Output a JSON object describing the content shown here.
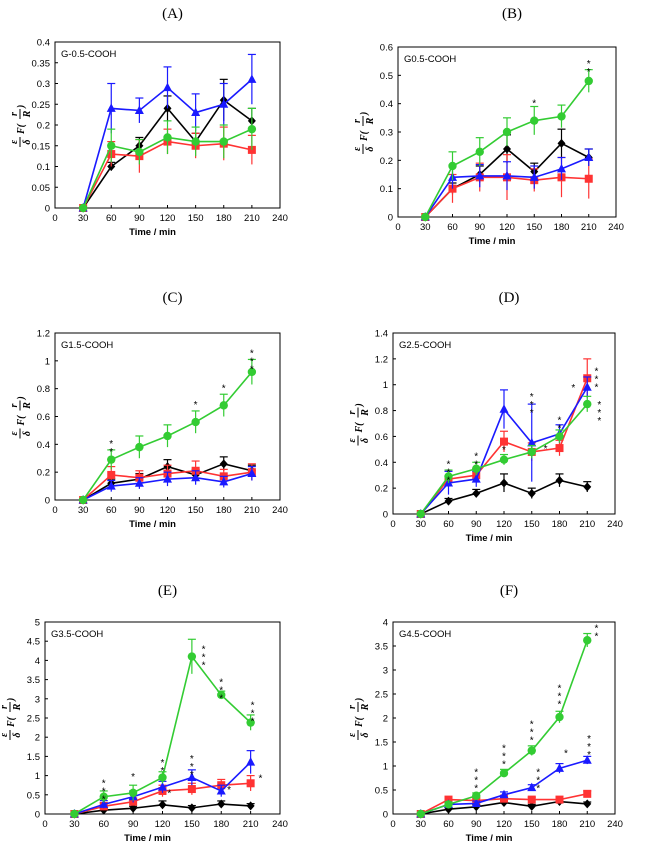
{
  "figure": {
    "ylabel_parts": {
      "eps": "ε",
      "delta": "δ",
      "F": "F(",
      "r": "r",
      "R": "R",
      "close": ")"
    }
  },
  "chart_data": [
    {
      "type": "line",
      "panel": "(A)",
      "title": "G-0.5-COOH",
      "xlabel": "Time / min",
      "xlim": [
        0,
        240
      ],
      "xticks": [
        0,
        30,
        60,
        90,
        120,
        150,
        180,
        210,
        240
      ],
      "ylim": [
        0,
        0.4
      ],
      "yticks": [
        "0",
        "0.05",
        "0.1",
        "0.15",
        "0.2",
        "0.25",
        "0.3",
        "0.35",
        "0.4"
      ],
      "x": [
        30,
        60,
        90,
        120,
        150,
        180,
        210
      ],
      "series": [
        {
          "name": "black",
          "color": "#000000",
          "marker": "diamond",
          "values": [
            0,
            0.1,
            0.15,
            0.24,
            0.16,
            0.26,
            0.21
          ],
          "errors": [
            0,
            0.01,
            0.02,
            0.03,
            0.02,
            0.05,
            0.03
          ]
        },
        {
          "name": "red",
          "color": "#ff3333",
          "marker": "square",
          "values": [
            0,
            0.13,
            0.125,
            0.16,
            0.15,
            0.155,
            0.14
          ],
          "errors": [
            0,
            0.03,
            0.04,
            0.03,
            0.03,
            0.04,
            0.035
          ]
        },
        {
          "name": "blue",
          "color": "#1a1aff",
          "marker": "triangle",
          "values": [
            0,
            0.24,
            0.235,
            0.29,
            0.23,
            0.25,
            0.31
          ],
          "errors": [
            0,
            0.06,
            0.03,
            0.05,
            0.045,
            0.05,
            0.06
          ]
        },
        {
          "name": "green",
          "color": "#33cc33",
          "marker": "circle",
          "values": [
            0,
            0.15,
            0.135,
            0.17,
            0.16,
            0.16,
            0.19
          ],
          "errors": [
            0,
            0.04,
            0.03,
            0.04,
            0.035,
            0.04,
            0.05
          ]
        }
      ],
      "annotations": []
    },
    {
      "type": "line",
      "panel": "(B)",
      "title": "G0.5-COOH",
      "xlabel": "Time / min",
      "xlim": [
        0,
        240
      ],
      "xticks": [
        0,
        30,
        60,
        90,
        120,
        150,
        180,
        210,
        240
      ],
      "ylim": [
        0,
        0.6
      ],
      "yticks": [
        "0",
        "0.1",
        "0.2",
        "0.3",
        "0.4",
        "0.5",
        "0.6"
      ],
      "x": [
        30,
        60,
        90,
        120,
        150,
        180,
        210
      ],
      "series": [
        {
          "name": "black",
          "color": "#000000",
          "marker": "diamond",
          "values": [
            0,
            0.1,
            0.15,
            0.24,
            0.16,
            0.26,
            0.21
          ],
          "errors": [
            0,
            0.02,
            0.03,
            0.05,
            0.03,
            0.05,
            0.03
          ]
        },
        {
          "name": "red",
          "color": "#ff3333",
          "marker": "square",
          "values": [
            0,
            0.1,
            0.14,
            0.14,
            0.13,
            0.14,
            0.135
          ],
          "errors": [
            0,
            0.05,
            0.05,
            0.08,
            0.04,
            0.07,
            0.07
          ]
        },
        {
          "name": "blue",
          "color": "#1a1aff",
          "marker": "triangle",
          "values": [
            0,
            0.14,
            0.145,
            0.145,
            0.14,
            0.17,
            0.21
          ],
          "errors": [
            0,
            0.04,
            0.04,
            0.05,
            0.04,
            0.04,
            0.03
          ]
        },
        {
          "name": "green",
          "color": "#33cc33",
          "marker": "circle",
          "values": [
            0,
            0.18,
            0.23,
            0.3,
            0.34,
            0.355,
            0.48
          ],
          "errors": [
            0,
            0.05,
            0.05,
            0.05,
            0.05,
            0.04,
            0.04
          ]
        }
      ],
      "annotations": [
        {
          "x": 150,
          "text": "*",
          "count": 1,
          "anchor": 0.39
        },
        {
          "x": 210,
          "text": "*",
          "count": 2,
          "anchor": 0.53
        }
      ]
    },
    {
      "type": "line",
      "panel": "(C)",
      "title": "G1.5-COOH",
      "xlabel": "Time / min",
      "xlim": [
        0,
        240
      ],
      "xticks": [
        0,
        30,
        60,
        90,
        120,
        150,
        180,
        210,
        240
      ],
      "ylim": [
        0,
        1.2
      ],
      "yticks": [
        "0",
        "0.2",
        "0.4",
        "0.6",
        "0.8",
        "1",
        "1.2"
      ],
      "x": [
        30,
        60,
        90,
        120,
        150,
        180,
        210
      ],
      "series": [
        {
          "name": "black",
          "color": "#000000",
          "marker": "diamond",
          "values": [
            0,
            0.12,
            0.15,
            0.24,
            0.18,
            0.26,
            0.21
          ],
          "errors": [
            0,
            0.03,
            0.04,
            0.05,
            0.04,
            0.05,
            0.04
          ]
        },
        {
          "name": "red",
          "color": "#ff3333",
          "marker": "square",
          "values": [
            0,
            0.18,
            0.16,
            0.19,
            0.21,
            0.17,
            0.2
          ],
          "errors": [
            0,
            0.06,
            0.05,
            0.06,
            0.07,
            0.05,
            0.06
          ]
        },
        {
          "name": "blue",
          "color": "#1a1aff",
          "marker": "triangle",
          "values": [
            0,
            0.1,
            0.12,
            0.15,
            0.16,
            0.13,
            0.19
          ],
          "errors": [
            0,
            0.04,
            0.04,
            0.05,
            0.05,
            0.04,
            0.05
          ]
        },
        {
          "name": "green",
          "color": "#33cc33",
          "marker": "circle",
          "values": [
            0,
            0.29,
            0.38,
            0.46,
            0.56,
            0.68,
            0.92
          ],
          "errors": [
            0,
            0.07,
            0.08,
            0.08,
            0.08,
            0.08,
            0.09
          ]
        }
      ],
      "annotations": [
        {
          "x": 60,
          "text": "*",
          "count": 2,
          "anchor": 0.38
        },
        {
          "x": 150,
          "text": "*",
          "count": 1,
          "anchor": 0.66
        },
        {
          "x": 180,
          "text": "*",
          "count": 1,
          "anchor": 0.78
        },
        {
          "x": 210,
          "text": "*",
          "count": 3,
          "anchor": 1.03
        }
      ]
    },
    {
      "type": "line",
      "panel": "(D)",
      "title": "G2.5-COOH",
      "xlabel": "Time / min",
      "xlim": [
        0,
        240
      ],
      "xticks": [
        0,
        30,
        60,
        90,
        120,
        150,
        180,
        210,
        240
      ],
      "ylim": [
        0,
        1.4
      ],
      "yticks": [
        "0",
        "0.2",
        "0.4",
        "0.6",
        "0.8",
        "1",
        "1.2",
        "1.4"
      ],
      "x": [
        30,
        60,
        90,
        120,
        150,
        180,
        210
      ],
      "series": [
        {
          "name": "black",
          "color": "#000000",
          "marker": "diamond",
          "values": [
            0,
            0.1,
            0.16,
            0.24,
            0.16,
            0.26,
            0.21
          ],
          "errors": [
            0,
            0.02,
            0.03,
            0.07,
            0.04,
            0.05,
            0.04
          ]
        },
        {
          "name": "red",
          "color": "#ff3333",
          "marker": "square",
          "values": [
            0,
            0.27,
            0.3,
            0.56,
            0.48,
            0.51,
            1.05
          ],
          "errors": [
            0,
            0.06,
            0.05,
            0.08,
            0.07,
            0.06,
            0.15
          ]
        },
        {
          "name": "blue",
          "color": "#1a1aff",
          "marker": "triangle",
          "values": [
            0,
            0.24,
            0.27,
            0.81,
            0.55,
            0.62,
            0.98
          ],
          "errors": [
            0,
            0.09,
            0.06,
            0.15,
            0.3,
            0.07,
            0.08
          ]
        },
        {
          "name": "green",
          "color": "#33cc33",
          "marker": "circle",
          "values": [
            0,
            0.29,
            0.35,
            0.42,
            0.48,
            0.6,
            0.85
          ],
          "errors": [
            0,
            0.05,
            0.05,
            0.04,
            0.05,
            0.05,
            0.06
          ]
        }
      ],
      "annotations": [
        {
          "x": 60,
          "text": "*",
          "count": 3,
          "anchor": 0.36
        },
        {
          "x": 90,
          "text": "*",
          "count": 2,
          "anchor": 0.42
        },
        {
          "x": 120,
          "text": "*",
          "count": 1,
          "anchor": 0.47
        },
        {
          "x": 150,
          "text": "*",
          "count": 3,
          "anchor": 0.88
        },
        {
          "x": 165,
          "text": "*",
          "count": 1,
          "anchor": 0.48
        },
        {
          "x": 180,
          "text": "*",
          "count": 2,
          "anchor": 0.7
        },
        {
          "x": 195,
          "text": "*",
          "count": 1,
          "anchor": 0.95
        },
        {
          "x": 220,
          "text": "*",
          "count": 3,
          "anchor": 1.08
        },
        {
          "x": 223,
          "text": "*",
          "count": 3,
          "anchor": 0.82
        }
      ]
    },
    {
      "type": "line",
      "panel": "(E)",
      "title": "G3.5-COOH",
      "xlabel": "Time / min",
      "xlim": [
        0,
        240
      ],
      "xticks": [
        0,
        30,
        60,
        90,
        120,
        150,
        180,
        210,
        240
      ],
      "ylim": [
        0,
        5
      ],
      "yticks": [
        "0",
        "0.5",
        "1",
        "1.5",
        "2",
        "2.5",
        "3",
        "3.5",
        "4",
        "4.5",
        "5"
      ],
      "x": [
        30,
        60,
        90,
        120,
        150,
        180,
        210
      ],
      "series": [
        {
          "name": "black",
          "color": "#000000",
          "marker": "diamond",
          "values": [
            0,
            0.1,
            0.15,
            0.24,
            0.16,
            0.26,
            0.21
          ],
          "errors": [
            0,
            0.04,
            0.05,
            0.1,
            0.06,
            0.08,
            0.06
          ]
        },
        {
          "name": "red",
          "color": "#ff3333",
          "marker": "square",
          "values": [
            0,
            0.2,
            0.32,
            0.6,
            0.65,
            0.75,
            0.8
          ],
          "errors": [
            0,
            0.1,
            0.1,
            0.15,
            0.15,
            0.15,
            0.2
          ]
        },
        {
          "name": "blue",
          "color": "#1a1aff",
          "marker": "triangle",
          "values": [
            0,
            0.25,
            0.45,
            0.7,
            0.95,
            0.6,
            1.35
          ],
          "errors": [
            0,
            0.1,
            0.15,
            0.15,
            0.2,
            0.15,
            0.3
          ]
        },
        {
          "name": "green",
          "color": "#33cc33",
          "marker": "circle",
          "values": [
            0,
            0.45,
            0.55,
            0.95,
            4.1,
            3.1,
            2.38
          ],
          "errors": [
            0,
            0.15,
            0.2,
            0.15,
            0.45,
            0.1,
            0.2
          ]
        }
      ],
      "annotations": [
        {
          "x": 60,
          "text": "*",
          "count": 3,
          "anchor": 0.72
        },
        {
          "x": 90,
          "text": "*",
          "count": 1,
          "anchor": 0.88
        },
        {
          "x": 120,
          "text": "*",
          "count": 2,
          "anchor": 1.25
        },
        {
          "x": 127,
          "text": "*",
          "count": 1,
          "anchor": 0.45
        },
        {
          "x": 150,
          "text": "*",
          "count": 3,
          "anchor": 1.35
        },
        {
          "x": 162,
          "text": "*",
          "count": 3,
          "anchor": 4.2
        },
        {
          "x": 180,
          "text": "*",
          "count": 3,
          "anchor": 3.35
        },
        {
          "x": 188,
          "text": "*",
          "count": 1,
          "anchor": 0.55
        },
        {
          "x": 212,
          "text": "*",
          "count": 3,
          "anchor": 2.75
        },
        {
          "x": 220,
          "text": "*",
          "count": 1,
          "anchor": 0.85
        }
      ]
    },
    {
      "type": "line",
      "panel": "(F)",
      "title": "G4.5-COOH",
      "xlabel": "Time / min",
      "xlim": [
        0,
        240
      ],
      "xticks": [
        0,
        30,
        60,
        90,
        120,
        150,
        180,
        210,
        240
      ],
      "ylim": [
        0,
        4
      ],
      "yticks": [
        "0",
        "0.5",
        "1",
        "1.5",
        "2",
        "2.5",
        "3",
        "3.5",
        "4"
      ],
      "x": [
        30,
        60,
        90,
        120,
        150,
        180,
        210
      ],
      "series": [
        {
          "name": "black",
          "color": "#000000",
          "marker": "diamond",
          "values": [
            0,
            0.1,
            0.15,
            0.24,
            0.16,
            0.26,
            0.21
          ],
          "errors": [
            0,
            0.03,
            0.04,
            0.05,
            0.04,
            0.05,
            0.04
          ]
        },
        {
          "name": "red",
          "color": "#ff3333",
          "marker": "square",
          "values": [
            0,
            0.3,
            0.28,
            0.32,
            0.3,
            0.3,
            0.42
          ],
          "errors": [
            0,
            0.06,
            0.05,
            0.05,
            0.05,
            0.05,
            0.06
          ]
        },
        {
          "name": "blue",
          "color": "#1a1aff",
          "marker": "triangle",
          "values": [
            0,
            0.2,
            0.22,
            0.4,
            0.55,
            0.95,
            1.12
          ],
          "errors": [
            0,
            0.05,
            0.05,
            0.06,
            0.06,
            0.1,
            0.08
          ]
        },
        {
          "name": "green",
          "color": "#33cc33",
          "marker": "circle",
          "values": [
            0,
            0.2,
            0.38,
            0.85,
            1.32,
            2.02,
            3.62
          ],
          "errors": [
            0,
            0.05,
            0.06,
            0.08,
            0.1,
            0.12,
            0.14
          ]
        }
      ],
      "annotations": [
        {
          "x": 90,
          "text": "*",
          "count": 3,
          "anchor": 0.8
        },
        {
          "x": 120,
          "text": "*",
          "count": 3,
          "anchor": 1.3
        },
        {
          "x": 150,
          "text": "*",
          "count": 3,
          "anchor": 1.8
        },
        {
          "x": 157,
          "text": "*",
          "count": 3,
          "anchor": 0.8
        },
        {
          "x": 180,
          "text": "*",
          "count": 3,
          "anchor": 2.55
        },
        {
          "x": 187,
          "text": "*",
          "count": 1,
          "anchor": 1.2
        },
        {
          "x": 212,
          "text": "*",
          "count": 3,
          "anchor": 1.5
        },
        {
          "x": 220,
          "text": "*",
          "count": 2,
          "anchor": 3.8
        }
      ]
    }
  ]
}
